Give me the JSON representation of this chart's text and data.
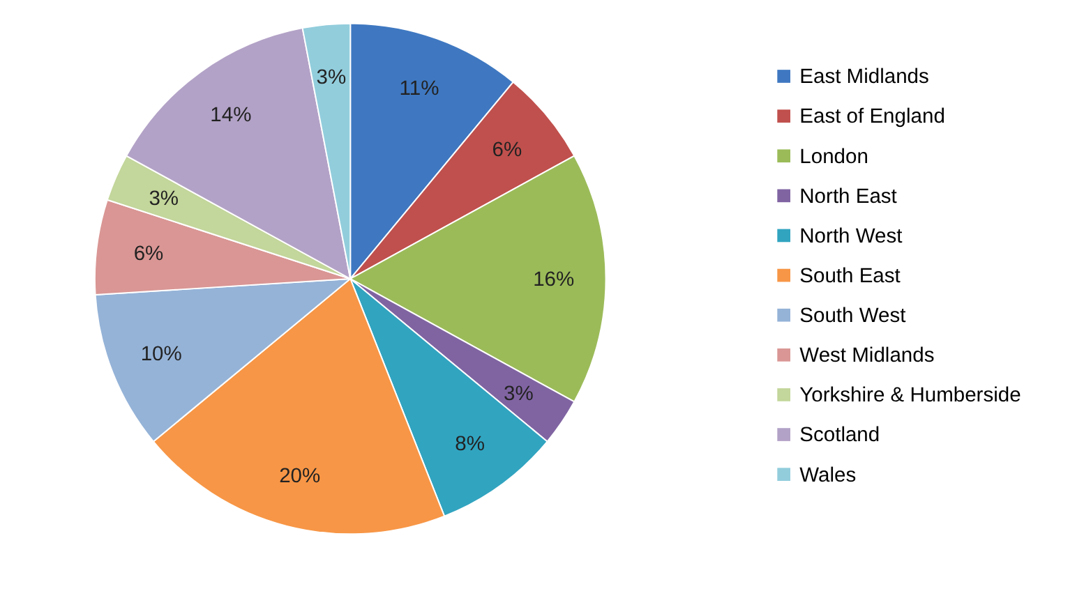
{
  "chart_data": {
    "type": "pie",
    "categories": [
      "East Midlands",
      "East of England",
      "London",
      "North East",
      "North West",
      "South East",
      "South West",
      "West Midlands",
      "Yorkshire & Humberside",
      "Scotland",
      "Wales"
    ],
    "values": [
      11,
      6,
      16,
      3,
      8,
      20,
      10,
      6,
      3,
      14,
      3
    ],
    "value_labels": [
      "11%",
      "6%",
      "16%",
      "3%",
      "8%",
      "20%",
      "10%",
      "6%",
      "3%",
      "14%",
      "3%"
    ],
    "colors": [
      "#3f78c1",
      "#c0504d",
      "#9bbb59",
      "#8064a2",
      "#31a4c0",
      "#f79646",
      "#95b3d7",
      "#d99694",
      "#c3d69b",
      "#b3a2c7",
      "#92cddc"
    ],
    "legend": "right"
  }
}
